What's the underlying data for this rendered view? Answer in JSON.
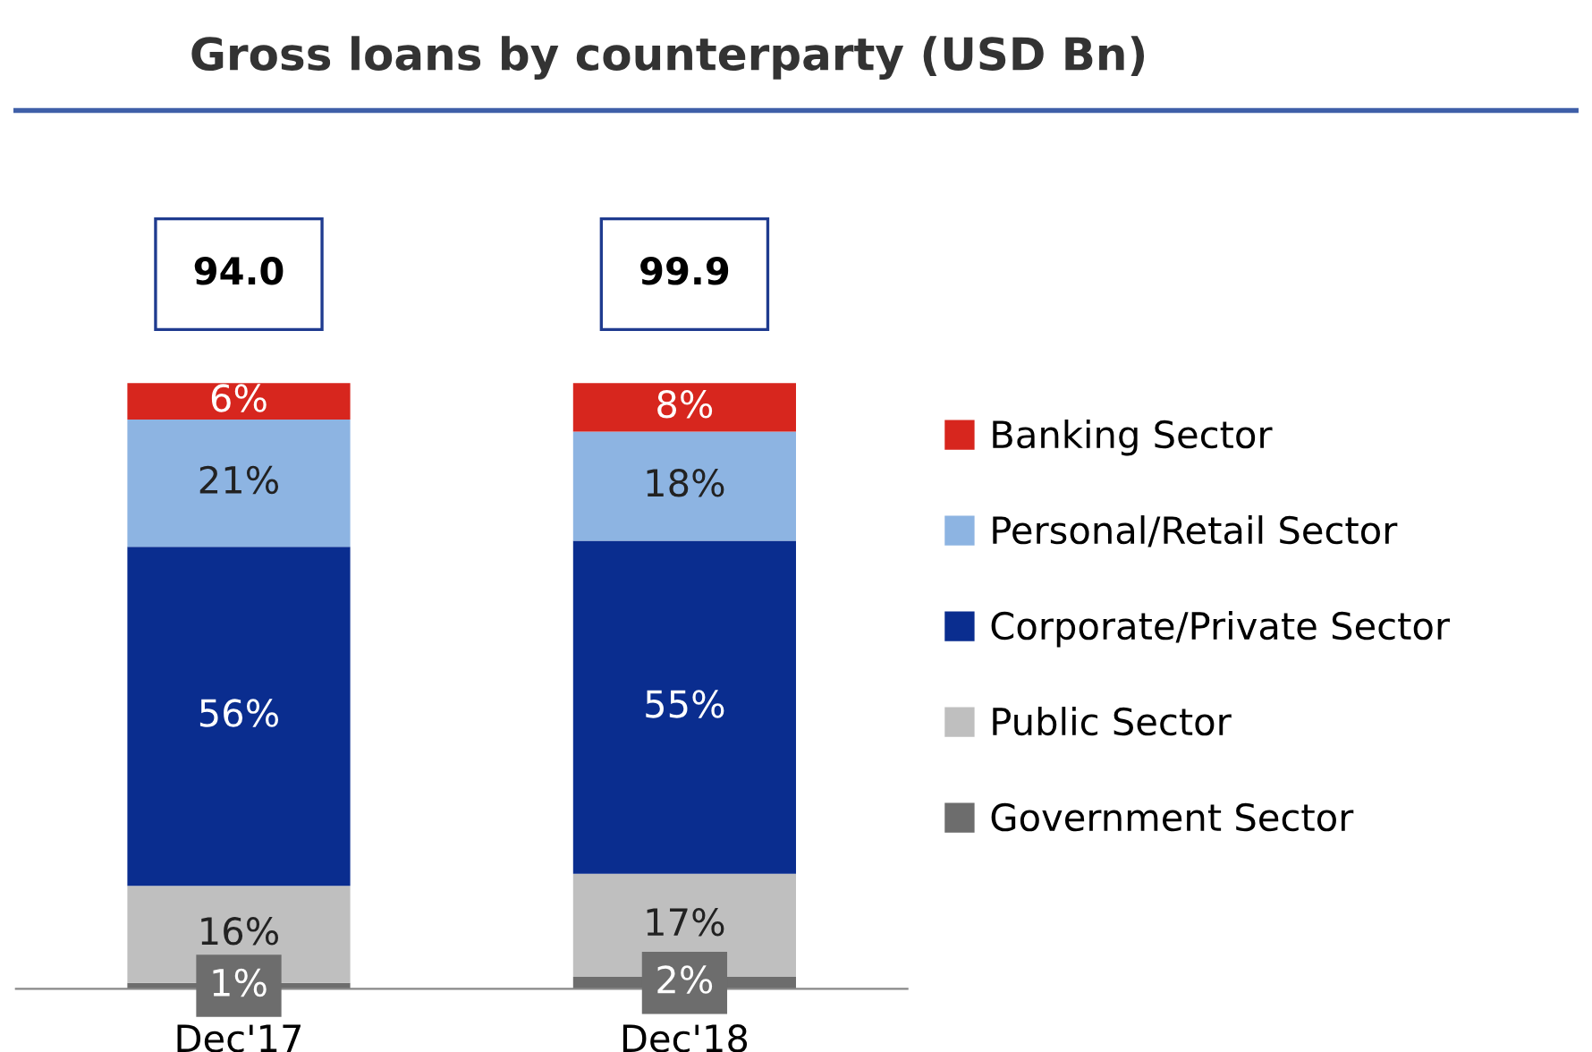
{
  "chart_data": {
    "type": "bar",
    "stacked": true,
    "title": "Gross loans by counterparty (USD Bn)",
    "categories": [
      "Dec'17",
      "Dec'18"
    ],
    "legend": "right",
    "annotations": [
      {
        "text": "94.0",
        "x": "Dec'17",
        "y": 100
      },
      {
        "text": "99.9",
        "x": "Dec'18",
        "y": 100
      }
    ],
    "series": [
      {
        "name": "Government Sector",
        "color": "#6d6d6d",
        "values": [
          1,
          2
        ],
        "value_labels": [
          "1%",
          "2%"
        ]
      },
      {
        "name": "Public Sector",
        "color": "#bfbfbf",
        "values": [
          16,
          17
        ],
        "value_labels": [
          "16%",
          "17%"
        ]
      },
      {
        "name": "Corporate/Private Sector",
        "color": "#0a2d8f",
        "values": [
          56,
          55
        ],
        "value_labels": [
          "56%",
          "55%"
        ]
      },
      {
        "name": "Personal/Retail Sector",
        "color": "#8db4e2",
        "values": [
          21,
          18
        ],
        "value_labels": [
          "21%",
          "18%"
        ]
      },
      {
        "name": "Banking Sector",
        "color": "#d7261e",
        "values": [
          6,
          8
        ],
        "value_labels": [
          "6%",
          "8%"
        ]
      }
    ]
  }
}
